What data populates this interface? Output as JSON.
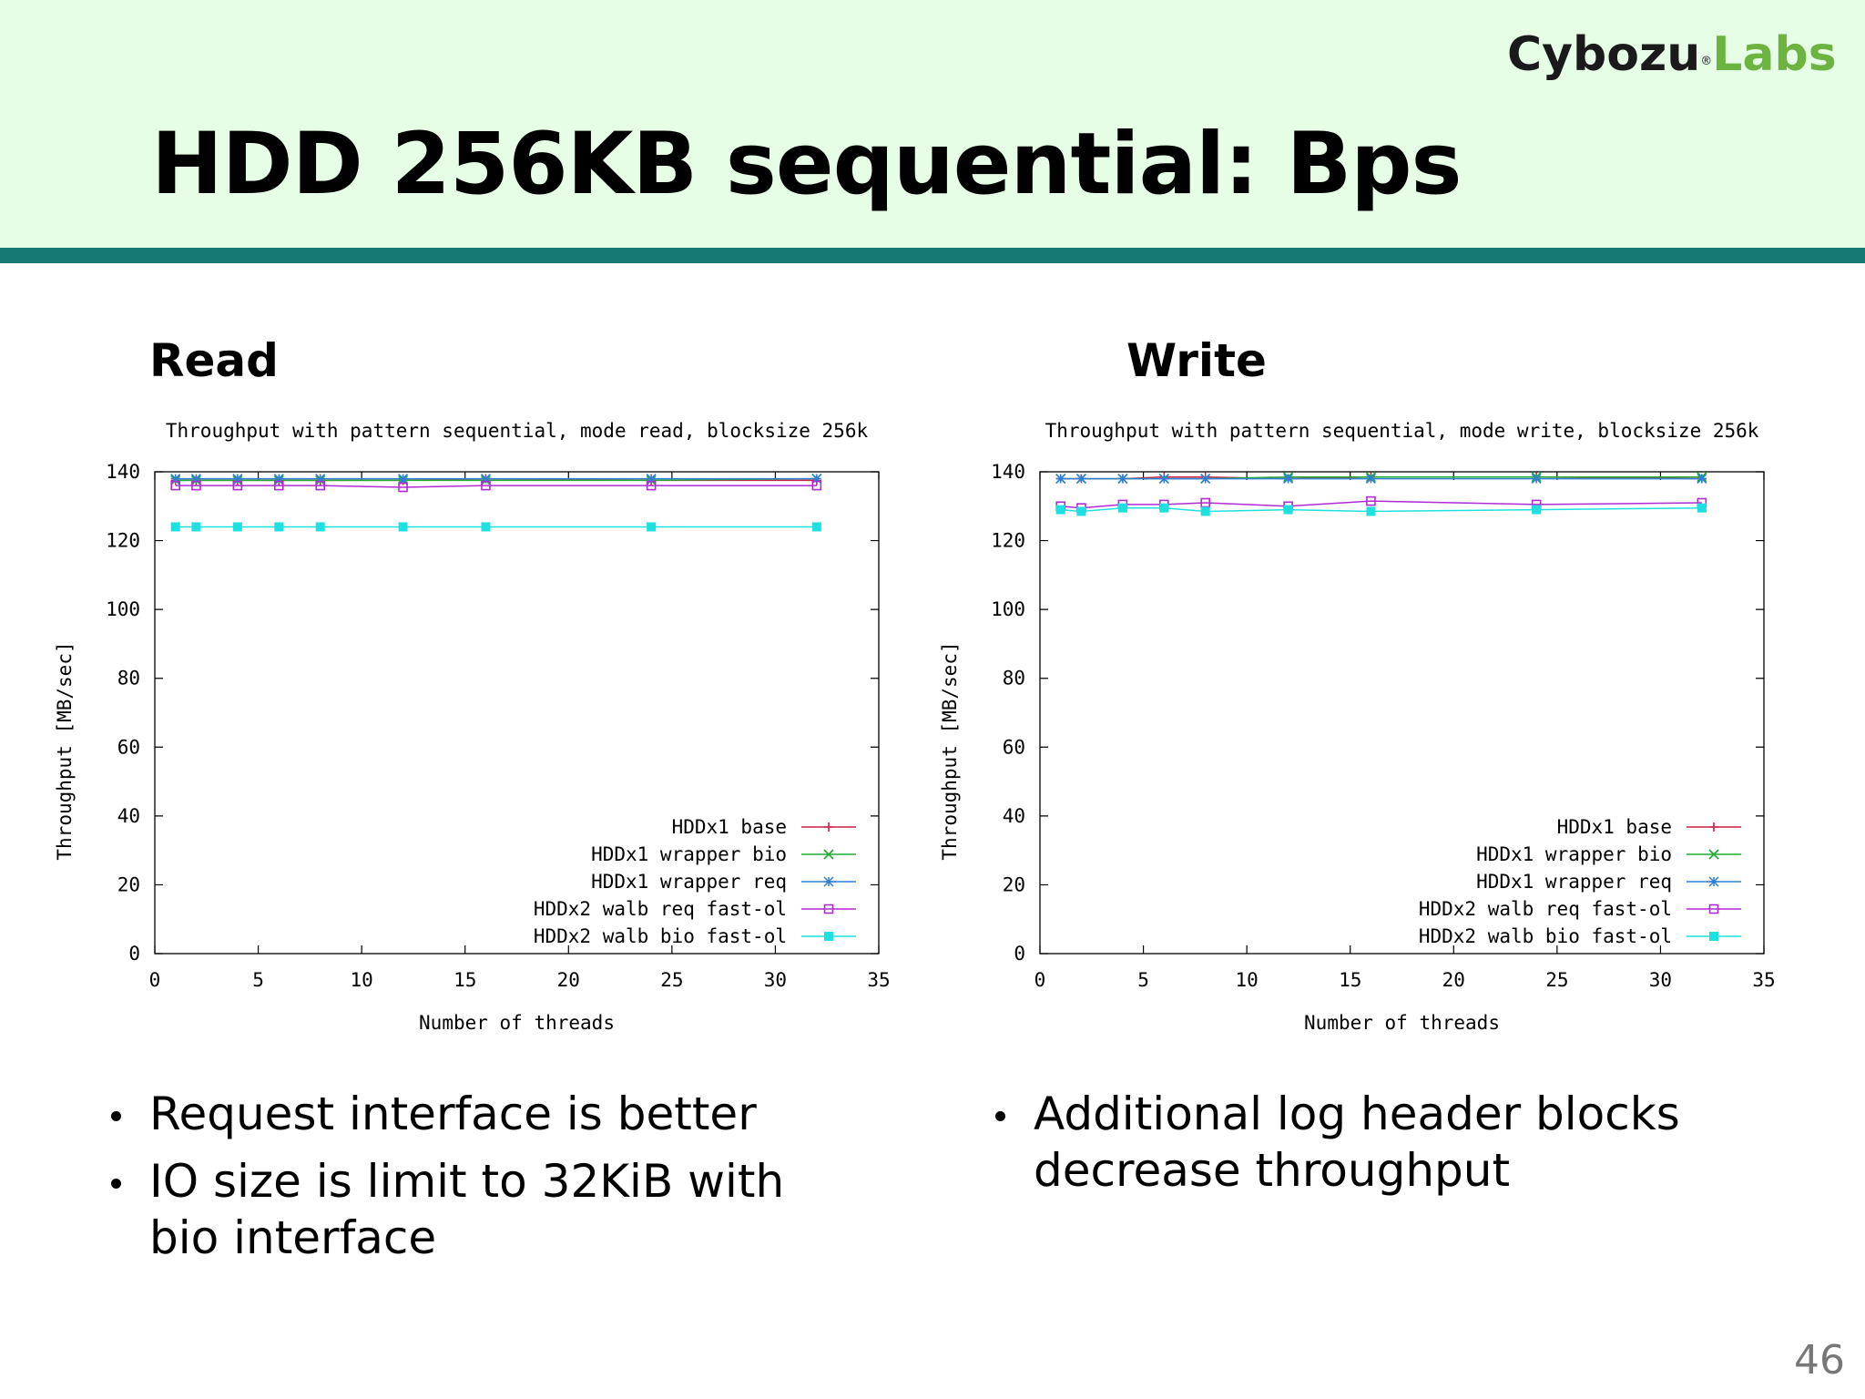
{
  "slide": {
    "title": "HDD 256KB sequential: Bps",
    "logo": {
      "part1": "Cybozu",
      "registered": "®",
      "part2": "Labs"
    },
    "page_number": "46"
  },
  "colors": {
    "header_bg": "#e6fde6",
    "header_bar": "#157a73",
    "logo_dark": "#1a1a1a",
    "logo_green": "#6db33f",
    "series": [
      "#cc2244",
      "#22aa33",
      "#2f7fd6",
      "#b02bd6",
      "#1fe0e0"
    ]
  },
  "panels": [
    {
      "heading": "Read",
      "bullets": [
        "Request interface is better",
        "IO size is limit to 32KiB with bio interface"
      ]
    },
    {
      "heading": "Write",
      "bullets": [
        "Additional log header blocks decrease throughput"
      ]
    }
  ],
  "chart_data": [
    {
      "type": "line",
      "title": "Throughput with pattern sequential, mode read, blocksize 256k",
      "xlabel": "Number of threads",
      "ylabel": "Throughput [MB/sec]",
      "xlim": [
        0,
        35
      ],
      "ylim": [
        0,
        140
      ],
      "xticks": [
        0,
        5,
        10,
        15,
        20,
        25,
        30,
        35
      ],
      "yticks": [
        0,
        20,
        40,
        60,
        80,
        100,
        120,
        140
      ],
      "legend_position": "bottom-right",
      "x": [
        1,
        2,
        4,
        6,
        8,
        12,
        16,
        24,
        32
      ],
      "series": [
        {
          "name": "HDDx1 base",
          "marker": "plus",
          "values": [
            137.5,
            137.5,
            137.5,
            137.5,
            137.5,
            137.5,
            138,
            137.5,
            137.5
          ]
        },
        {
          "name": "HDDx1 wrapper bio",
          "marker": "cross",
          "values": [
            137.5,
            137.5,
            137.5,
            137.5,
            137.5,
            137.5,
            137.5,
            137.5,
            138
          ]
        },
        {
          "name": "HDDx1 wrapper req",
          "marker": "star",
          "values": [
            138,
            138,
            138,
            138,
            138,
            138,
            138,
            138,
            138
          ]
        },
        {
          "name": "HDDx2 walb req fast-ol",
          "marker": "open-square",
          "values": [
            136,
            136,
            136,
            136,
            136,
            135.5,
            136,
            136,
            136
          ]
        },
        {
          "name": "HDDx2 walb bio fast-ol",
          "marker": "filled-square",
          "values": [
            124,
            124,
            124,
            124,
            124,
            124,
            124,
            124,
            124
          ]
        }
      ]
    },
    {
      "type": "line",
      "title": "Throughput with pattern sequential, mode write, blocksize 256k",
      "xlabel": "Number of threads",
      "ylabel": "Throughput [MB/sec]",
      "xlim": [
        0,
        35
      ],
      "ylim": [
        0,
        140
      ],
      "xticks": [
        0,
        5,
        10,
        15,
        20,
        25,
        30,
        35
      ],
      "yticks": [
        0,
        20,
        40,
        60,
        80,
        100,
        120,
        140
      ],
      "legend_position": "bottom-right",
      "x": [
        1,
        2,
        4,
        6,
        8,
        12,
        16,
        24,
        32
      ],
      "series": [
        {
          "name": "HDDx1 base",
          "marker": "plus",
          "values": [
            138,
            138,
            138,
            138.5,
            138.5,
            138,
            138.5,
            138.5,
            138
          ]
        },
        {
          "name": "HDDx1 wrapper bio",
          "marker": "cross",
          "values": [
            138,
            138,
            138,
            138,
            138,
            138.5,
            138.5,
            138.5,
            138.5
          ]
        },
        {
          "name": "HDDx1 wrapper req",
          "marker": "star",
          "values": [
            138,
            138,
            138,
            138,
            138,
            138,
            138,
            138,
            138
          ]
        },
        {
          "name": "HDDx2 walb req fast-ol",
          "marker": "open-square",
          "values": [
            130,
            129.5,
            130.5,
            130.5,
            131,
            130,
            131.5,
            130.5,
            131
          ]
        },
        {
          "name": "HDDx2 walb bio fast-ol",
          "marker": "filled-square",
          "values": [
            129,
            128.5,
            129.5,
            129.5,
            128.5,
            129,
            128.5,
            129,
            129.5
          ]
        }
      ]
    }
  ]
}
